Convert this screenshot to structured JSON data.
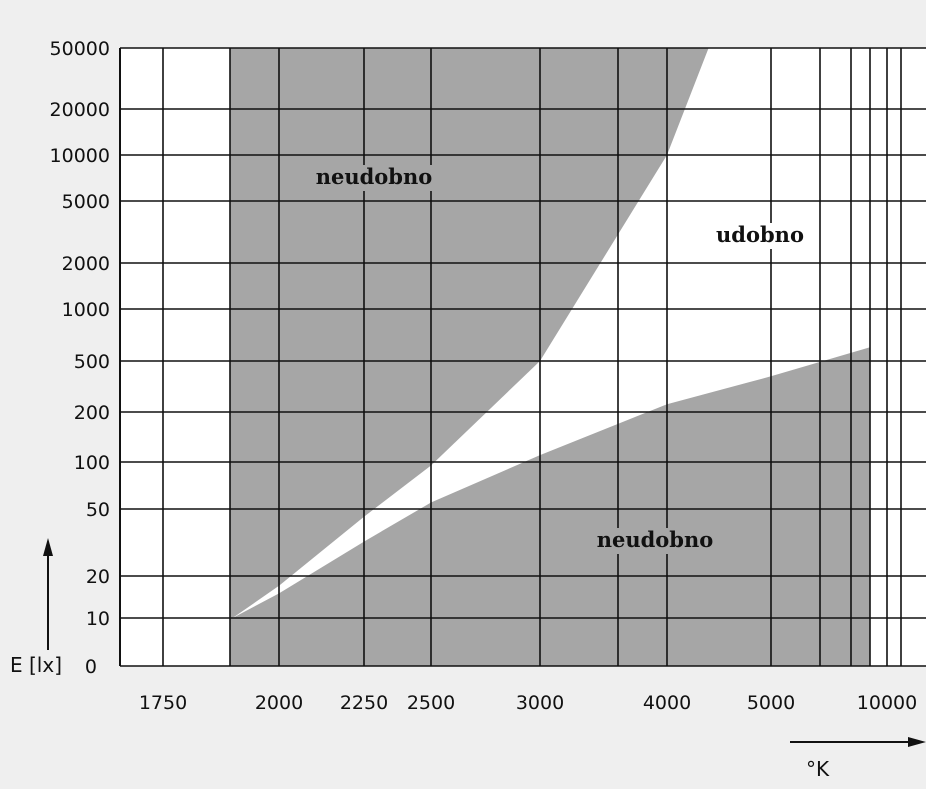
{
  "chart_data": {
    "type": "area",
    "x_axis": {
      "tick_labels": [
        "1750",
        "2000",
        "2250",
        "2500",
        "3000",
        "4000",
        "5000",
        "10000"
      ],
      "label": "°K"
    },
    "y_axis": {
      "tick_labels": [
        "50000",
        "20000",
        "10000",
        "5000",
        "2000",
        "1000",
        "500",
        "200",
        "100",
        "50",
        "20",
        "10",
        "0"
      ],
      "label": "E [lx]"
    },
    "regions": [
      {
        "label": "neudobno",
        "color": "#a6a6a6",
        "upper_boundary": {
          "x": [
            1900,
            2000,
            2250,
            2500,
            3000,
            4000,
            4400
          ],
          "y": [
            10,
            17,
            45,
            95,
            500,
            10000,
            50000
          ]
        }
      },
      {
        "label": "udobno",
        "color": "#ffffff"
      },
      {
        "label": "neudobno",
        "color": "#a6a6a6",
        "lower_boundary": {
          "x": [
            1900,
            2000,
            2250,
            2500,
            3000,
            4000,
            5000,
            10000
          ],
          "y": [
            10,
            15,
            32,
            55,
            110,
            230,
            380,
            600
          ]
        }
      }
    ],
    "grid": true
  },
  "colors": {
    "background": "#efefef",
    "plot_area": "#ffffff",
    "uncomfortable_region": "#a6a6a6",
    "grid": "#111111"
  }
}
